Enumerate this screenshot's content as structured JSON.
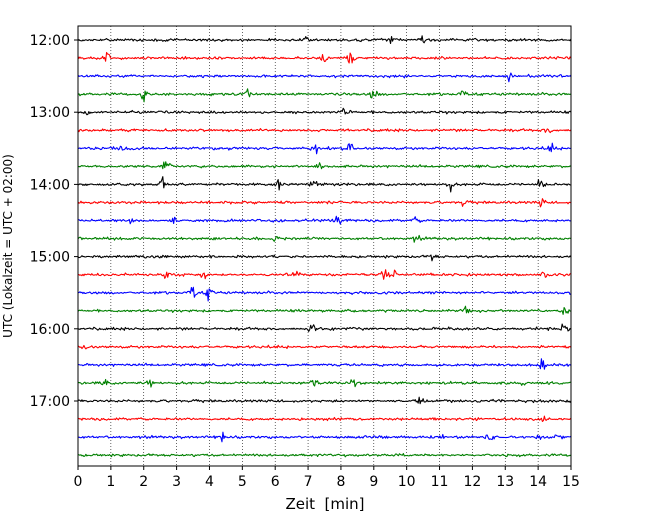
{
  "chart_data": {
    "type": "line",
    "title": "",
    "xlabel": "Zeit  [min]",
    "ylabel": "UTC (Lokalzeit = UTC + 02:00)",
    "xlim": [
      0,
      15
    ],
    "x_ticks": [
      0,
      1,
      2,
      3,
      4,
      5,
      6,
      7,
      8,
      9,
      10,
      11,
      12,
      13,
      14,
      15
    ],
    "x_tick_labels": [
      "0",
      "1",
      "2",
      "3",
      "4",
      "5",
      "6",
      "7",
      "8",
      "9",
      "10",
      "11",
      "12",
      "13",
      "14",
      "15"
    ],
    "y_tick_labels": [
      "12:00",
      "13:00",
      "14:00",
      "15:00",
      "16:00",
      "17:00"
    ],
    "y_tick_hours": [
      12,
      13,
      14,
      15,
      16,
      17
    ],
    "start_time": "12:00",
    "end_time": "17:45",
    "trace_interval_min": 15,
    "grid": "vertical dotted",
    "colors_cycle": [
      "#000000",
      "#ff0000",
      "#0000ff",
      "#008000"
    ],
    "traces": [
      {
        "time": "12:00",
        "color": "#000000",
        "events": [
          {
            "x": 7.0,
            "amp": 1.6
          },
          {
            "x": 9.5,
            "amp": 1.3
          },
          {
            "x": 10.5,
            "amp": 1.3
          }
        ]
      },
      {
        "time": "12:15",
        "color": "#ff0000",
        "events": [
          {
            "x": 0.9,
            "amp": 1.6
          },
          {
            "x": 7.5,
            "amp": 1.5
          },
          {
            "x": 8.3,
            "amp": 2.0
          }
        ]
      },
      {
        "time": "12:30",
        "color": "#0000ff",
        "events": [
          {
            "x": 13.1,
            "amp": 1.5
          }
        ]
      },
      {
        "time": "12:45",
        "color": "#008000",
        "events": [
          {
            "x": 2.0,
            "amp": 2.2
          },
          {
            "x": 5.1,
            "amp": 1.8
          },
          {
            "x": 9.0,
            "amp": 1.8
          },
          {
            "x": 11.7,
            "amp": 1.3
          }
        ]
      },
      {
        "time": "13:00",
        "color": "#000000",
        "events": [
          {
            "x": 0.3,
            "amp": 1.2
          },
          {
            "x": 8.1,
            "amp": 1.2
          }
        ]
      },
      {
        "time": "13:15",
        "color": "#ff0000",
        "events": [
          {
            "x": 14.3,
            "amp": 1.3
          }
        ]
      },
      {
        "time": "13:30",
        "color": "#0000ff",
        "events": [
          {
            "x": 1.3,
            "amp": 1.4
          },
          {
            "x": 7.2,
            "amp": 1.6
          },
          {
            "x": 8.3,
            "amp": 1.8
          },
          {
            "x": 14.4,
            "amp": 1.3
          }
        ]
      },
      {
        "time": "13:45",
        "color": "#008000",
        "events": [
          {
            "x": 2.7,
            "amp": 2.4
          },
          {
            "x": 7.3,
            "amp": 1.2
          }
        ]
      },
      {
        "time": "14:00",
        "color": "#000000",
        "events": [
          {
            "x": 2.6,
            "amp": 2.2
          },
          {
            "x": 6.1,
            "amp": 1.5
          },
          {
            "x": 7.2,
            "amp": 2.0
          },
          {
            "x": 11.3,
            "amp": 2.2
          },
          {
            "x": 14.1,
            "amp": 1.8
          }
        ]
      },
      {
        "time": "14:15",
        "color": "#ff0000",
        "events": [
          {
            "x": 11.7,
            "amp": 1.3
          },
          {
            "x": 14.1,
            "amp": 1.3
          }
        ]
      },
      {
        "time": "14:30",
        "color": "#0000ff",
        "events": [
          {
            "x": 1.6,
            "amp": 1.6
          },
          {
            "x": 2.9,
            "amp": 1.5
          },
          {
            "x": 7.9,
            "amp": 1.8
          },
          {
            "x": 10.3,
            "amp": 1.2
          }
        ]
      },
      {
        "time": "14:45",
        "color": "#008000",
        "events": [
          {
            "x": 6.0,
            "amp": 1.2
          },
          {
            "x": 10.3,
            "amp": 1.1
          }
        ]
      },
      {
        "time": "15:00",
        "color": "#000000",
        "events": [
          {
            "x": 10.8,
            "amp": 1.5
          }
        ]
      },
      {
        "time": "15:15",
        "color": "#ff0000",
        "events": [
          {
            "x": 2.7,
            "amp": 1.6
          },
          {
            "x": 3.8,
            "amp": 1.5
          },
          {
            "x": 6.6,
            "amp": 1.3
          },
          {
            "x": 9.3,
            "amp": 2.2
          },
          {
            "x": 9.6,
            "amp": 2.2
          },
          {
            "x": 14.2,
            "amp": 1.5
          }
        ]
      },
      {
        "time": "15:30",
        "color": "#0000ff",
        "events": [
          {
            "x": 3.5,
            "amp": 2.4
          },
          {
            "x": 4.0,
            "amp": 2.2
          }
        ]
      },
      {
        "time": "15:45",
        "color": "#008000",
        "events": [
          {
            "x": 11.8,
            "amp": 1.8
          },
          {
            "x": 14.8,
            "amp": 1.3
          }
        ]
      },
      {
        "time": "16:00",
        "color": "#000000",
        "events": [
          {
            "x": 7.1,
            "amp": 1.3
          },
          {
            "x": 14.8,
            "amp": 1.3
          }
        ]
      },
      {
        "time": "16:15",
        "color": "#ff0000",
        "events": [
          {
            "x": 0.2,
            "amp": 1.3
          }
        ]
      },
      {
        "time": "16:30",
        "color": "#0000ff",
        "events": [
          {
            "x": 14.1,
            "amp": 2.0
          }
        ]
      },
      {
        "time": "16:45",
        "color": "#008000",
        "events": [
          {
            "x": 0.8,
            "amp": 1.4
          },
          {
            "x": 2.2,
            "amp": 1.3
          },
          {
            "x": 7.2,
            "amp": 1.6
          },
          {
            "x": 8.4,
            "amp": 1.4
          },
          {
            "x": 13.5,
            "amp": 1.3
          }
        ]
      },
      {
        "time": "17:00",
        "color": "#000000",
        "events": [
          {
            "x": 10.4,
            "amp": 1.7
          }
        ]
      },
      {
        "time": "17:15",
        "color": "#ff0000",
        "events": [
          {
            "x": 14.2,
            "amp": 1.2
          }
        ]
      },
      {
        "time": "17:30",
        "color": "#0000ff",
        "events": [
          {
            "x": 4.4,
            "amp": 2.0
          },
          {
            "x": 11.1,
            "amp": 1.4
          },
          {
            "x": 12.5,
            "amp": 1.6
          },
          {
            "x": 14.0,
            "amp": 1.7
          },
          {
            "x": 14.6,
            "amp": 1.5
          }
        ]
      },
      {
        "time": "17:45",
        "color": "#008000",
        "events": []
      }
    ]
  }
}
